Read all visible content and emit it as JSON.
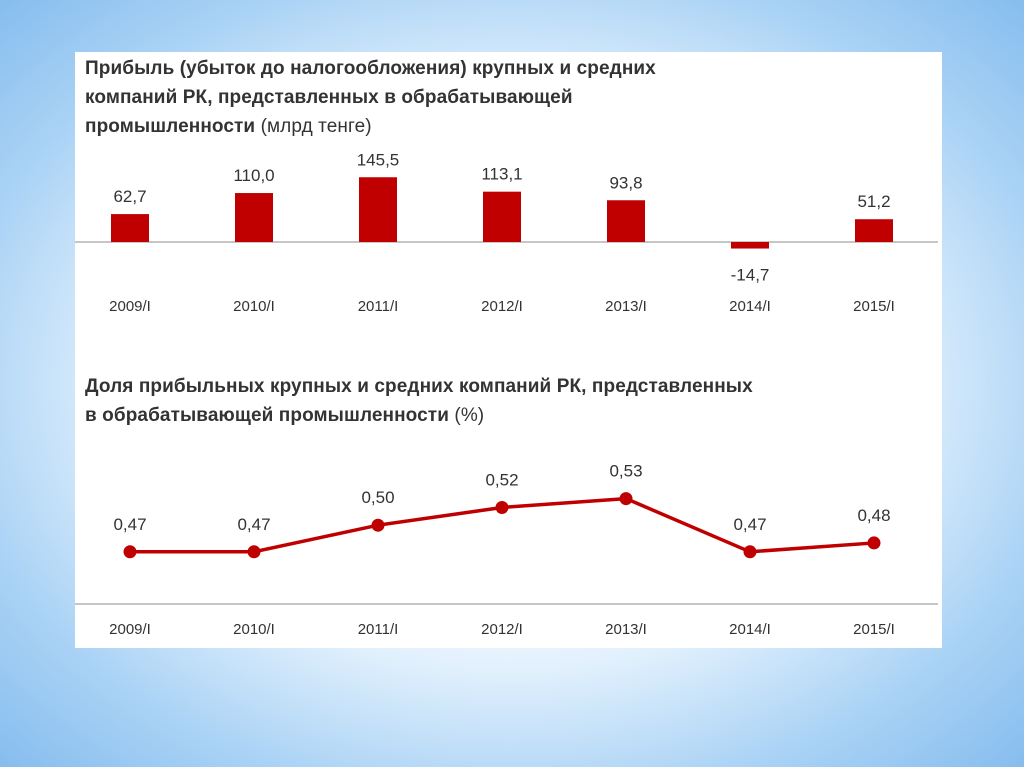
{
  "colors": {
    "series": "#c00000",
    "axis": "#b3b3b3",
    "text": "#333333"
  },
  "chart_data": [
    {
      "type": "bar",
      "title": "Прибыль (убыток до налогообложения) крупных и средних компаний РК, представленных в обрабатывающей промышленности",
      "title_unit": "(млрд тенге)",
      "categories": [
        "2009/I",
        "2010/I",
        "2011/I",
        "2012/I",
        "2013/I",
        "2014/I",
        "2015/I"
      ],
      "values": [
        62.7,
        110.0,
        145.5,
        113.1,
        93.8,
        -14.7,
        51.2
      ],
      "value_labels": [
        "62,7",
        "110,0",
        "145,5",
        "113,1",
        "93,8",
        "-14,7",
        "51,2"
      ],
      "ylim": [
        -40,
        160
      ],
      "grid": false,
      "legend": "none"
    },
    {
      "type": "line",
      "title": "Доля прибыльных крупных и средних компаний РК, представленных в обрабатывающей промышленности",
      "title_unit": "(%)",
      "categories": [
        "2009/I",
        "2010/I",
        "2011/I",
        "2012/I",
        "2013/I",
        "2014/I",
        "2015/I"
      ],
      "values": [
        0.47,
        0.47,
        0.5,
        0.52,
        0.53,
        0.47,
        0.48
      ],
      "value_labels": [
        "0,47",
        "0,47",
        "0,50",
        "0,52",
        "0,53",
        "0,47",
        "0,48"
      ],
      "ylim": [
        0.41,
        0.56
      ],
      "grid": false,
      "legend": "none"
    }
  ]
}
